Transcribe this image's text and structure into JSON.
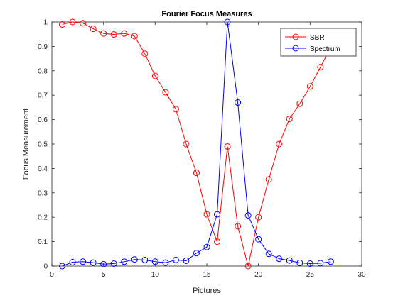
{
  "chart_data": {
    "type": "line",
    "title": "Fourier Focus Measures",
    "xlabel": "Pictures",
    "ylabel": "Focus Measurement",
    "xlim": [
      0,
      30
    ],
    "ylim": [
      0,
      1
    ],
    "xticks": [
      0,
      5,
      10,
      15,
      20,
      25,
      30
    ],
    "yticks": [
      0,
      0.1,
      0.2,
      0.3,
      0.4,
      0.5,
      0.6,
      0.7,
      0.8,
      0.9,
      1
    ],
    "xtick_labels": [
      "0",
      "5",
      "10",
      "15",
      "20",
      "25",
      "30"
    ],
    "ytick_labels": [
      "0",
      "0.1",
      "0.2",
      "0.3",
      "0.4",
      "0.5",
      "0.6",
      "0.7",
      "0.8",
      "0.9",
      "1"
    ],
    "grid": false,
    "legend_position": "top-right",
    "series": [
      {
        "name": "SBR",
        "color": "#ff0000",
        "marker": "circle",
        "x": [
          1,
          2,
          3,
          4,
          5,
          6,
          7,
          8,
          9,
          10,
          11,
          12,
          13,
          14,
          15,
          16,
          17,
          18,
          19,
          20,
          21,
          22,
          23,
          24,
          25,
          26,
          27
        ],
        "y": [
          0.99,
          1.0,
          0.995,
          0.972,
          0.953,
          0.949,
          0.953,
          0.942,
          0.87,
          0.779,
          0.712,
          0.643,
          0.5,
          0.382,
          0.212,
          0.1,
          0.49,
          0.163,
          0.0,
          0.2,
          0.355,
          0.5,
          0.603,
          0.665,
          0.736,
          0.815,
          0.897
        ]
      },
      {
        "name": "Spectrum",
        "color": "#0000ff",
        "marker": "circle",
        "x": [
          1,
          2,
          3,
          4,
          5,
          6,
          7,
          8,
          9,
          10,
          11,
          12,
          13,
          14,
          15,
          16,
          17,
          18,
          19,
          20,
          21,
          22,
          23,
          24,
          25,
          26,
          27
        ],
        "y": [
          0.0,
          0.016,
          0.018,
          0.014,
          0.008,
          0.01,
          0.018,
          0.027,
          0.025,
          0.018,
          0.014,
          0.025,
          0.022,
          0.053,
          0.078,
          0.212,
          1.0,
          0.67,
          0.208,
          0.11,
          0.05,
          0.03,
          0.023,
          0.013,
          0.01,
          0.012,
          0.018
        ]
      }
    ]
  }
}
